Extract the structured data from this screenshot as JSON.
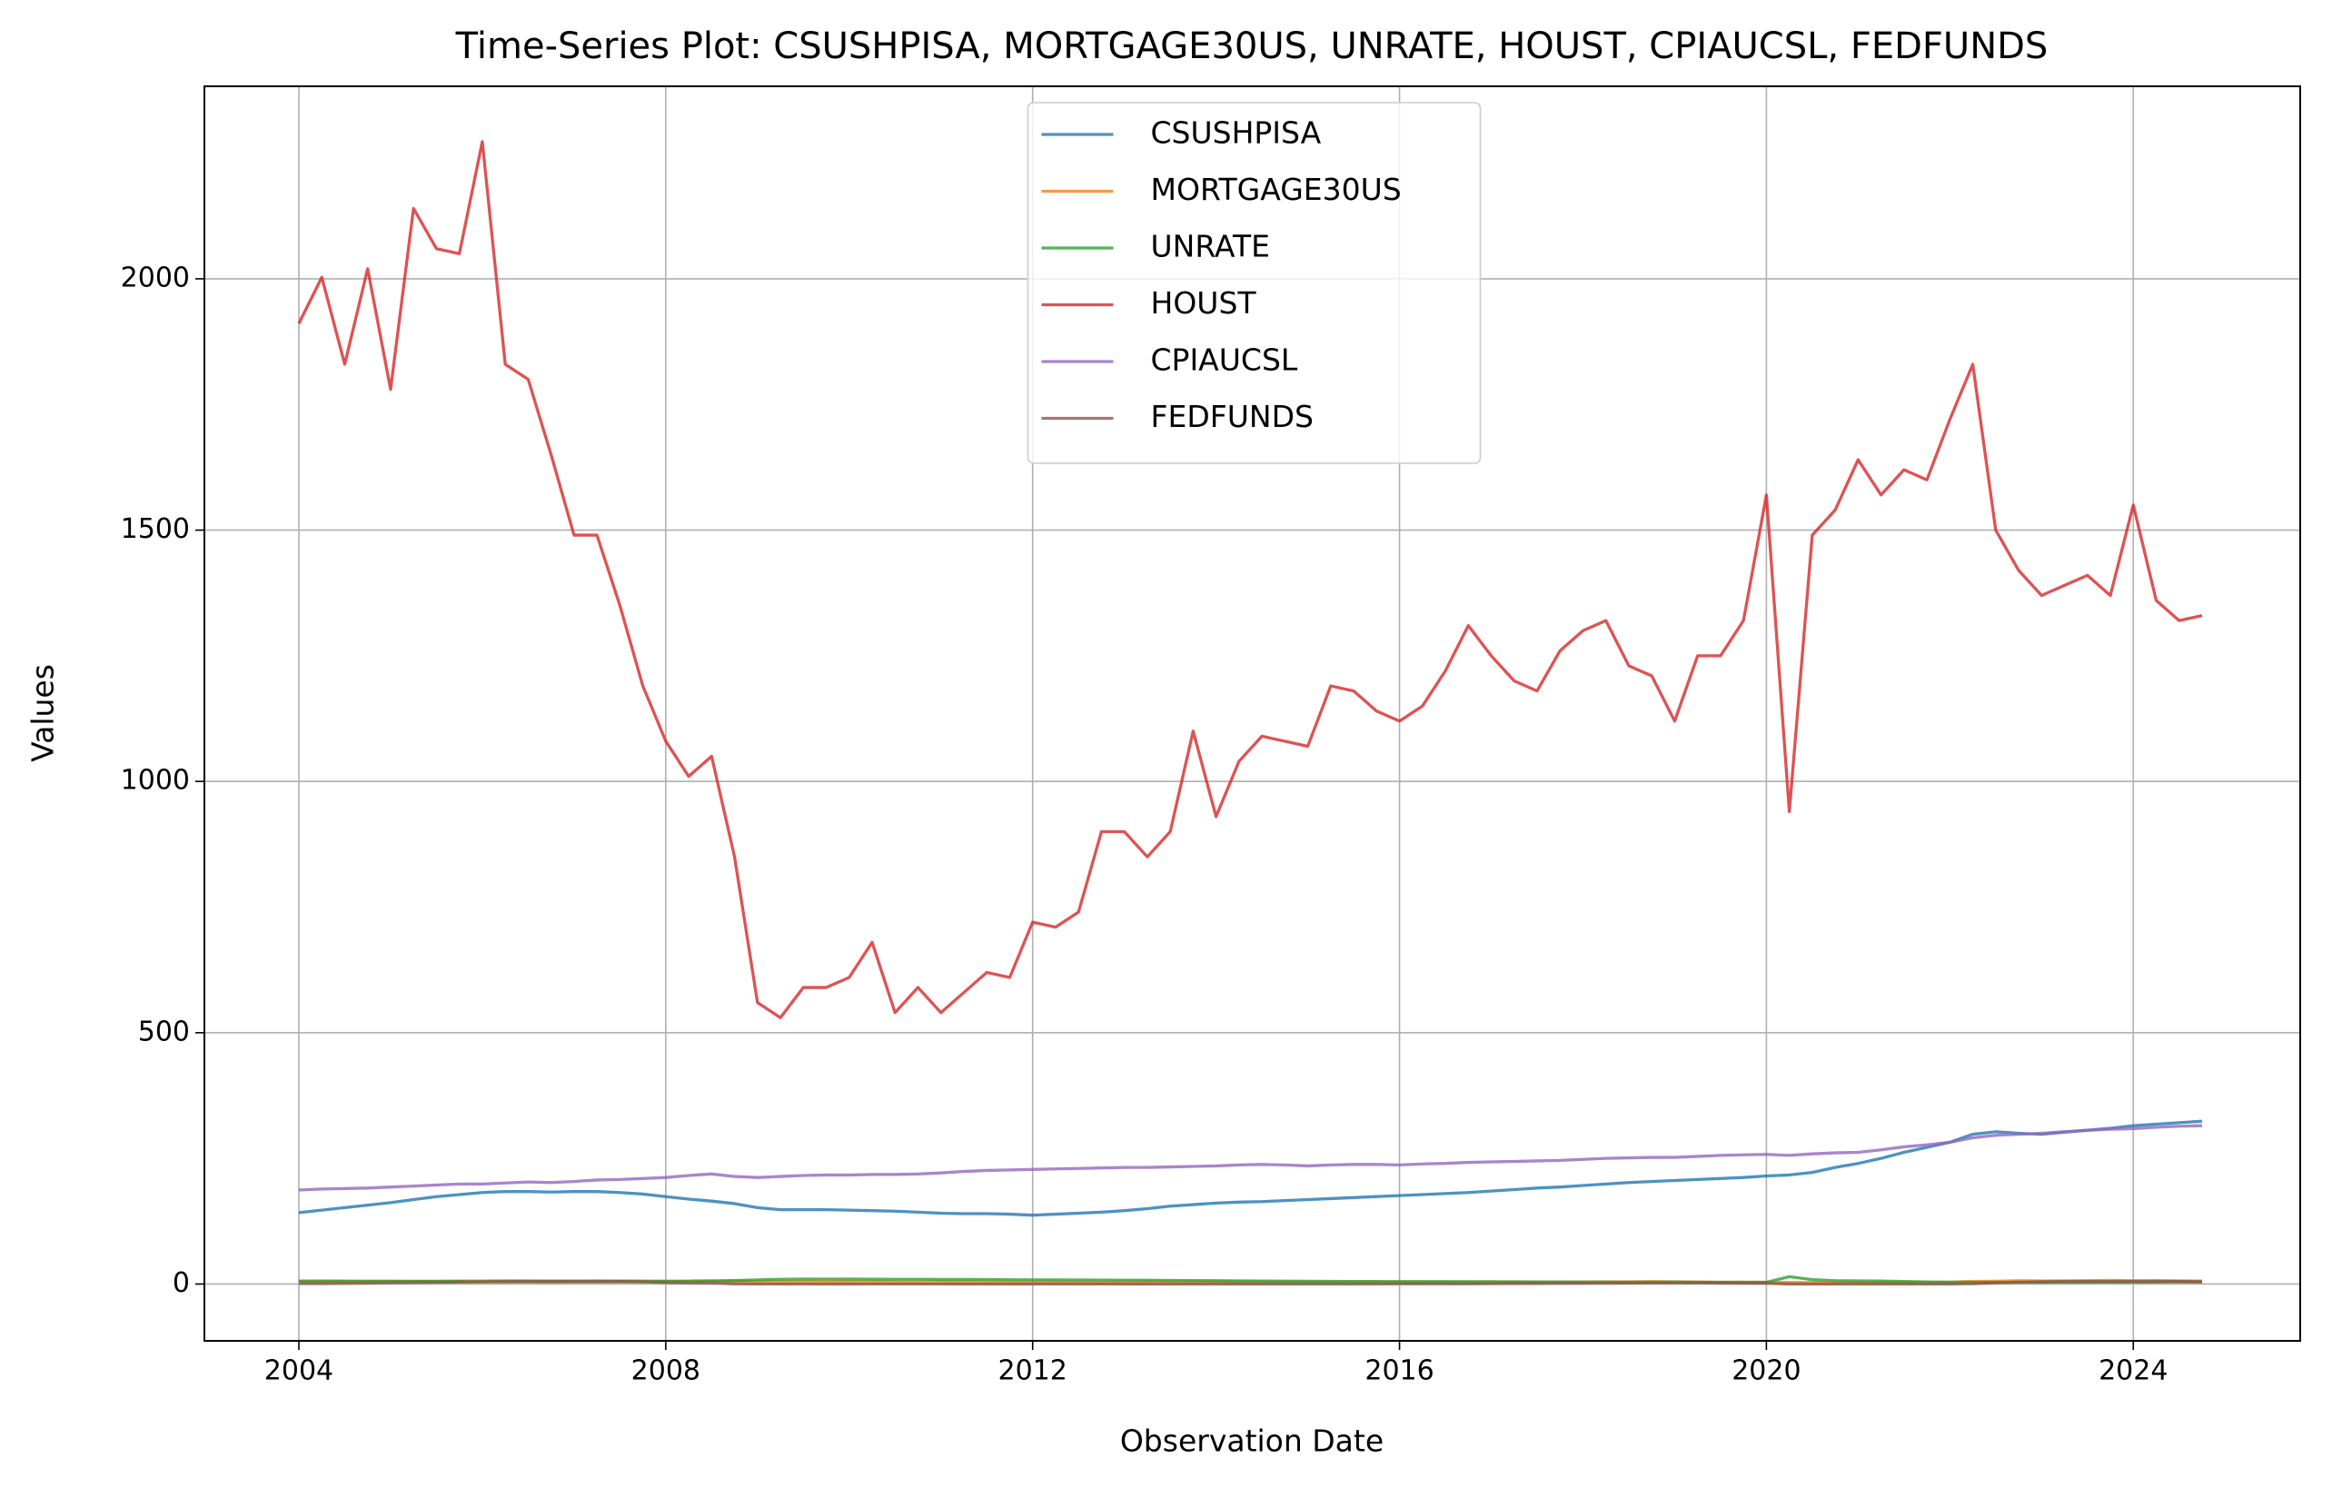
{
  "chart_data": {
    "type": "line",
    "title": "Time-Series Plot: CSUSHPISA, MORTGAGE30US, UNRATE, HOUST, CPIAUCSL, FEDFUNDS",
    "x_label": "Observation Date",
    "y_label": "Values",
    "xlim": [
      2002.97,
      2025.82
    ],
    "xticks": [
      2004,
      2008,
      2012,
      2016,
      2020,
      2024
    ],
    "ylim": [
      -113,
      2383
    ],
    "yticks": [
      0,
      500,
      1000,
      1500,
      2000
    ],
    "grid": true,
    "legend": "upper center",
    "x": [
      2004,
      2004.25,
      2004.5,
      2004.75,
      2005,
      2005.25,
      2005.5,
      2005.75,
      2006,
      2006.25,
      2006.5,
      2006.75,
      2007,
      2007.25,
      2007.5,
      2007.75,
      2008,
      2008.25,
      2008.5,
      2008.75,
      2009,
      2009.25,
      2009.5,
      2009.75,
      2010,
      2010.25,
      2010.5,
      2010.75,
      2011,
      2011.25,
      2011.5,
      2011.75,
      2012,
      2012.25,
      2012.5,
      2012.75,
      2013,
      2013.25,
      2013.5,
      2013.75,
      2014,
      2014.25,
      2014.5,
      2014.75,
      2015,
      2015.25,
      2015.5,
      2015.75,
      2016,
      2016.25,
      2016.5,
      2016.75,
      2017,
      2017.25,
      2017.5,
      2017.75,
      2018,
      2018.25,
      2018.5,
      2018.75,
      2019,
      2019.25,
      2019.5,
      2019.75,
      2020,
      2020.25,
      2020.5,
      2020.75,
      2021,
      2021.25,
      2021.5,
      2021.75,
      2022,
      2022.25,
      2022.5,
      2022.75,
      2023,
      2023.25,
      2023.5,
      2023.75,
      2024,
      2024.25,
      2024.5,
      2024.75
    ],
    "series": [
      {
        "name": "CSUSHPISA",
        "color": "#1f77b4",
        "values": [
          142,
          147,
          152,
          157,
          162,
          168,
          174,
          178,
          182,
          184,
          184,
          183,
          184,
          184,
          182,
          179,
          174,
          169,
          165,
          160,
          152,
          148,
          148,
          148,
          147,
          146,
          145,
          143,
          141,
          140,
          140,
          139,
          137,
          139,
          141,
          143,
          146,
          150,
          155,
          158,
          161,
          163,
          164,
          166,
          168,
          170,
          172,
          174,
          176,
          178,
          180,
          182,
          185,
          188,
          191,
          193,
          196,
          199,
          202,
          204,
          206,
          208,
          210,
          212,
          215,
          217,
          222,
          232,
          240,
          250,
          262,
          272,
          282,
          298,
          303,
          300,
          298,
          302,
          306,
          310,
          315,
          318,
          321,
          324
        ]
      },
      {
        "name": "MORTGAGE30US",
        "color": "#ff7f0e",
        "values": [
          5.7,
          6.2,
          5.9,
          5.7,
          5.8,
          5.7,
          5.8,
          6.3,
          6.2,
          6.6,
          6.5,
          6.2,
          6.2,
          6.4,
          6.5,
          6.2,
          5.9,
          6.1,
          6.4,
          6.0,
          5.1,
          4.9,
          5.2,
          4.9,
          5.0,
          4.9,
          4.4,
          4.3,
          4.8,
          4.6,
          4.3,
          4.0,
          3.9,
          3.8,
          3.5,
          3.4,
          3.5,
          3.9,
          4.5,
          4.3,
          4.4,
          4.2,
          4.1,
          4.0,
          3.7,
          3.8,
          4.0,
          3.9,
          3.7,
          3.6,
          3.4,
          3.8,
          4.2,
          4.0,
          3.9,
          3.9,
          4.2,
          4.5,
          4.5,
          4.8,
          4.4,
          4.1,
          3.6,
          3.7,
          3.5,
          3.2,
          3.0,
          2.8,
          2.8,
          3.1,
          2.9,
          3.1,
          3.8,
          5.3,
          5.6,
          6.8,
          6.3,
          6.5,
          6.8,
          7.4,
          6.7,
          7.0,
          6.5,
          6.2
        ]
      },
      {
        "name": "UNRATE",
        "color": "#2ca02c",
        "values": [
          5.7,
          5.6,
          5.5,
          5.4,
          5.3,
          5.1,
          5.0,
          5.0,
          4.7,
          4.6,
          4.5,
          4.4,
          4.6,
          4.5,
          4.7,
          4.8,
          5.0,
          5.4,
          6.1,
          6.9,
          8.3,
          9.4,
          9.8,
          9.9,
          9.8,
          9.6,
          9.5,
          9.5,
          9.1,
          9.1,
          9.0,
          8.6,
          8.3,
          8.2,
          8.0,
          7.8,
          7.7,
          7.5,
          7.2,
          7.0,
          6.6,
          6.2,
          6.1,
          5.7,
          5.6,
          5.4,
          5.1,
          5.0,
          4.9,
          4.9,
          4.9,
          4.7,
          4.6,
          4.4,
          4.3,
          4.1,
          4.0,
          3.9,
          3.8,
          3.8,
          3.9,
          3.6,
          3.6,
          3.6,
          3.5,
          14.7,
          8.8,
          6.7,
          6.3,
          5.9,
          5.1,
          4.2,
          3.8,
          3.6,
          3.5,
          3.6,
          3.5,
          3.6,
          3.7,
          3.8,
          3.8,
          3.9,
          4.2,
          4.1
        ]
      },
      {
        "name": "HOUST",
        "color": "#d62728",
        "values": [
          1911,
          2003,
          1830,
          2020,
          1780,
          2140,
          2060,
          2050,
          2273,
          1830,
          1800,
          1650,
          1490,
          1490,
          1350,
          1190,
          1080,
          1010,
          1050,
          850,
          560,
          530,
          590,
          590,
          610,
          680,
          540,
          590,
          540,
          580,
          620,
          610,
          720,
          710,
          740,
          900,
          900,
          850,
          900,
          1100,
          930,
          1040,
          1090,
          1080,
          1070,
          1190,
          1180,
          1140,
          1120,
          1150,
          1220,
          1310,
          1250,
          1200,
          1180,
          1260,
          1300,
          1320,
          1230,
          1210,
          1120,
          1250,
          1250,
          1320,
          1570,
          940,
          1490,
          1540,
          1640,
          1570,
          1620,
          1600,
          1720,
          1830,
          1500,
          1420,
          1370,
          1390,
          1410,
          1370,
          1550,
          1360,
          1320,
          1330
        ]
      },
      {
        "name": "CPIAUCSL",
        "color": "#9467bd",
        "values": [
          187,
          189,
          190,
          191,
          193,
          195,
          197,
          199,
          199,
          201,
          203,
          202,
          204,
          207,
          208,
          210,
          212,
          216,
          219,
          214,
          212,
          214,
          216,
          217,
          217,
          218,
          218,
          219,
          221,
          224,
          226,
          227,
          228,
          229,
          230,
          231,
          232,
          232,
          233,
          234,
          235,
          237,
          238,
          237,
          235,
          237,
          238,
          238,
          237,
          239,
          240,
          242,
          243,
          244,
          245,
          246,
          248,
          250,
          251,
          252,
          252,
          254,
          256,
          257,
          258,
          256,
          259,
          261,
          262,
          267,
          273,
          277,
          282,
          291,
          296,
          298,
          300,
          303,
          306,
          308,
          309,
          312,
          314,
          315
        ]
      },
      {
        "name": "FEDFUNDS",
        "color": "#8c564b",
        "values": [
          1.0,
          1.0,
          1.4,
          1.8,
          2.5,
          2.9,
          3.4,
          3.9,
          4.5,
          4.9,
          5.25,
          5.25,
          5.25,
          5.25,
          5.1,
          4.5,
          3.0,
          2.1,
          2.0,
          0.5,
          0.2,
          0.2,
          0.2,
          0.1,
          0.1,
          0.2,
          0.2,
          0.2,
          0.2,
          0.1,
          0.1,
          0.1,
          0.1,
          0.2,
          0.1,
          0.2,
          0.1,
          0.1,
          0.1,
          0.1,
          0.1,
          0.1,
          0.1,
          0.1,
          0.1,
          0.1,
          0.1,
          0.2,
          0.4,
          0.4,
          0.4,
          0.5,
          0.7,
          1.0,
          1.2,
          1.3,
          1.5,
          1.8,
          2.0,
          2.3,
          2.4,
          2.4,
          2.1,
          1.6,
          1.6,
          0.1,
          0.1,
          0.1,
          0.1,
          0.1,
          0.1,
          0.1,
          0.1,
          0.8,
          2.6,
          3.8,
          4.6,
          5.1,
          5.3,
          5.3,
          5.3,
          5.3,
          5.1,
          4.6
        ]
      }
    ]
  }
}
